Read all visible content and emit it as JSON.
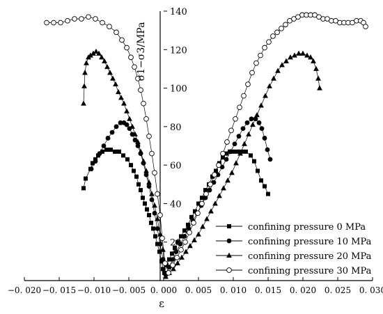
{
  "chart_data": {
    "type": "scatter",
    "title": "",
    "xlabel": "ε",
    "ylabel": "σ1−σ3/MPa",
    "xlim": [
      -0.02,
      0.03
    ],
    "ylim": [
      0,
      140
    ],
    "x_ticks": [
      -0.02,
      -0.015,
      -0.01,
      -0.005,
      0.0,
      0.005,
      0.01,
      0.015,
      0.02,
      0.025,
      0.03
    ],
    "x_tick_labels": [
      "−0. 020",
      "−0. 015",
      "−0. 010",
      "−0. 005",
      "0. 000",
      "0. 005",
      "0. 010",
      "0. 015",
      "0. 020",
      "0. 025",
      "0. 030"
    ],
    "y_ticks": [
      20,
      40,
      60,
      80,
      100,
      120,
      140
    ],
    "y_tick_labels": [
      "20",
      "40",
      "60",
      "80",
      "100",
      "120",
      "140"
    ],
    "legend_position": "bottom-right",
    "grid": false,
    "series": [
      {
        "name": "confining pressure 0 MPa",
        "marker": "square",
        "x": [
          -0.0115,
          -0.0112,
          -0.0105,
          -0.0102,
          -0.0098,
          -0.0094,
          -0.0088,
          -0.0082,
          -0.0076,
          -0.007,
          -0.0064,
          -0.0058,
          -0.0052,
          -0.0047,
          -0.0043,
          -0.0039,
          -0.0036,
          -0.0033,
          -0.003,
          -0.0027,
          -0.0024,
          -0.0021,
          -0.0018,
          -0.0015,
          -0.0012,
          -0.0009,
          -0.0006,
          -0.0003,
          -0.0001,
          0.0001,
          0.0004,
          0.0008,
          0.0012,
          0.0016,
          0.002,
          0.0025,
          0.003,
          0.0035,
          0.004,
          0.0045,
          0.005,
          0.0055,
          0.006,
          0.0065,
          0.007,
          0.0075,
          0.008,
          0.0085,
          0.009,
          0.0095,
          0.01,
          0.0106,
          0.0112,
          0.0118,
          0.0125,
          0.013,
          0.0135,
          0.014,
          0.0145,
          0.015
        ],
        "y": [
          48,
          53,
          58,
          61,
          63,
          65,
          67,
          68,
          68,
          67,
          67,
          65,
          63,
          60,
          57,
          54,
          50,
          47,
          43,
          40,
          37,
          34,
          30,
          27,
          23,
          19,
          15,
          10,
          6,
          4,
          8,
          11,
          14,
          17,
          20,
          23,
          26,
          29,
          33,
          36,
          40,
          43,
          47,
          50,
          54,
          57,
          61,
          64,
          66,
          67,
          67,
          67,
          67,
          67,
          65,
          62,
          57,
          52,
          49,
          45
        ]
      },
      {
        "name": "confining pressure 10 MPa",
        "marker": "circle",
        "x": [
          -0.0104,
          -0.0098,
          -0.0092,
          -0.0086,
          -0.008,
          -0.0074,
          -0.0068,
          -0.0062,
          -0.0057,
          -0.0053,
          -0.0049,
          -0.0045,
          -0.0041,
          -0.0037,
          -0.0033,
          -0.0029,
          -0.0025,
          -0.0021,
          -0.0017,
          -0.0013,
          -0.0009,
          -0.0005,
          -0.0001,
          0.0003,
          0.0008,
          0.0013,
          0.0018,
          0.0024,
          0.003,
          0.0036,
          0.0042,
          0.0048,
          0.0054,
          0.006,
          0.0066,
          0.0072,
          0.0078,
          0.0084,
          0.009,
          0.0096,
          0.0102,
          0.0108,
          0.0114,
          0.012,
          0.0126,
          0.0132,
          0.0137,
          0.0141,
          0.0145,
          0.0149,
          0.0153
        ],
        "y": [
          58,
          62,
          66,
          70,
          74,
          77,
          80,
          82,
          82,
          81,
          79,
          76,
          73,
          70,
          66,
          61,
          55,
          49,
          42,
          35,
          27,
          19,
          11,
          3,
          7,
          11,
          15,
          19,
          23,
          27,
          31,
          35,
          39,
          43,
          47,
          51,
          55,
          59,
          63,
          67,
          71,
          75,
          79,
          82,
          84,
          84,
          82,
          79,
          74,
          68,
          63
        ]
      },
      {
        "name": "confining pressure 20 MPa",
        "marker": "triangle",
        "x": [
          -0.0115,
          -0.0114,
          -0.0113,
          -0.0111,
          -0.0108,
          -0.0105,
          -0.0101,
          -0.0097,
          -0.0093,
          -0.0089,
          -0.0085,
          -0.0081,
          -0.0077,
          -0.0073,
          -0.0069,
          -0.0065,
          -0.0061,
          -0.0057,
          -0.0053,
          -0.0049,
          -0.0045,
          -0.0041,
          -0.0037,
          -0.0033,
          -0.0029,
          -0.0025,
          -0.0021,
          -0.0017,
          -0.0013,
          -0.0009,
          -0.0005,
          -0.0001,
          0.0003,
          0.0008,
          0.0014,
          0.002,
          0.0026,
          0.0032,
          0.0038,
          0.0044,
          0.005,
          0.0056,
          0.0062,
          0.0068,
          0.0074,
          0.008,
          0.0086,
          0.0092,
          0.0098,
          0.0104,
          0.011,
          0.0116,
          0.0122,
          0.0128,
          0.0134,
          0.014,
          0.0146,
          0.0152,
          0.0158,
          0.0164,
          0.017,
          0.0176,
          0.0182,
          0.0188,
          0.0194,
          0.02,
          0.0206,
          0.0211,
          0.0215,
          0.0219,
          0.0222,
          0.0224
        ],
        "y": [
          92,
          101,
          108,
          113,
          116,
          117,
          118,
          119,
          118,
          116,
          114,
          111,
          108,
          105,
          102,
          98,
          95,
          92,
          88,
          84,
          80,
          76,
          72,
          67,
          62,
          57,
          51,
          45,
          39,
          32,
          24,
          16,
          2,
          4,
          6,
          9,
          12,
          15,
          18,
          21,
          24,
          28,
          32,
          36,
          40,
          44,
          48,
          52,
          56,
          61,
          66,
          71,
          76,
          81,
          86,
          91,
          96,
          101,
          105,
          109,
          112,
          114,
          116,
          117,
          118,
          118,
          117,
          116,
          114,
          110,
          105,
          100
        ]
      },
      {
        "name": "confining pressure 30 MPa",
        "marker": "open-circle",
        "x": [
          -0.0168,
          -0.0158,
          -0.0148,
          -0.0138,
          -0.0128,
          -0.0118,
          -0.0108,
          -0.0098,
          -0.0088,
          -0.0078,
          -0.0068,
          -0.006,
          -0.0053,
          -0.0047,
          -0.0042,
          -0.0037,
          -0.0033,
          -0.0029,
          -0.0025,
          -0.0021,
          -0.0017,
          -0.0013,
          -0.0009,
          -0.0005,
          -0.0002,
          0.0002,
          0.0007,
          0.0013,
          0.0019,
          0.0025,
          0.0031,
          0.0037,
          0.0043,
          0.0049,
          0.0055,
          0.0061,
          0.0067,
          0.0073,
          0.0079,
          0.0085,
          0.0091,
          0.0097,
          0.0103,
          0.0109,
          0.0115,
          0.0121,
          0.0127,
          0.0133,
          0.0139,
          0.0145,
          0.0151,
          0.0157,
          0.0163,
          0.0169,
          0.0175,
          0.0181,
          0.0187,
          0.0193,
          0.0199,
          0.0205,
          0.0211,
          0.0217,
          0.0223,
          0.0229,
          0.0235,
          0.0241,
          0.0247,
          0.0253,
          0.0259,
          0.0265,
          0.0271,
          0.0277,
          0.0283,
          0.0287,
          0.029
        ],
        "y": [
          134,
          134,
          134,
          135,
          136,
          136,
          137,
          136,
          134,
          132,
          129,
          125,
          121,
          116,
          111,
          105,
          99,
          92,
          84,
          75,
          66,
          56,
          45,
          34,
          22,
          9,
          4,
          8,
          12,
          16,
          20,
          25,
          30,
          35,
          40,
          45,
          50,
          55,
          60,
          66,
          72,
          78,
          84,
          90,
          96,
          102,
          108,
          113,
          117,
          121,
          124,
          127,
          129,
          131,
          133,
          135,
          136,
          137,
          138,
          138,
          138,
          138,
          137,
          136,
          136,
          135,
          135,
          134,
          134,
          134,
          134,
          135,
          135,
          134,
          132
        ]
      }
    ]
  }
}
